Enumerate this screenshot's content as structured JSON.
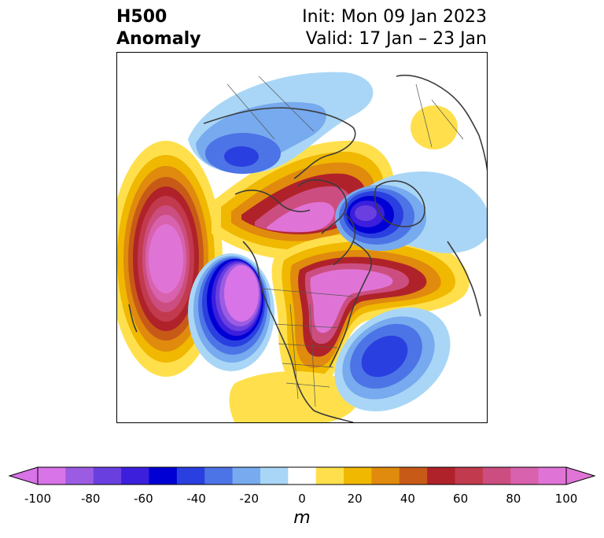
{
  "title": {
    "left_line1": "H500",
    "left_line2": "Anomaly",
    "init": "Init: Mon 09 Jan 2023",
    "valid": "Valid: 17 Jan – 23 Jan"
  },
  "colorbar": {
    "unit": "m",
    "ticks": [
      "-100",
      "-80",
      "-60",
      "-40",
      "-20",
      "0",
      "20",
      "40",
      "60",
      "80",
      "100"
    ],
    "levels": [
      -100,
      -90,
      -80,
      -70,
      -60,
      -50,
      -40,
      -30,
      -20,
      -10,
      10,
      20,
      30,
      40,
      50,
      60,
      70,
      80,
      90,
      100
    ],
    "colors": [
      "#d873e8",
      "#9b5ce3",
      "#6a3fdf",
      "#3b1fdc",
      "#0000d4",
      "#2a3fe0",
      "#4c74e6",
      "#77aaee",
      "#a9d6f6",
      "#ffffff",
      "#ffe04c",
      "#f0b800",
      "#e08a0e",
      "#c85a18",
      "#b0222a",
      "#c23a4e",
      "#cc4e80",
      "#d862ad",
      "#e074d6"
    ],
    "extend_low_color": "#d873e8",
    "extend_high_color": "#e074d6"
  },
  "anomalies": [
    {
      "label": "pacific-ridge-west",
      "value": 100
    },
    {
      "label": "western-na-trough",
      "value": -100
    },
    {
      "label": "arctic-ridge",
      "value": 100
    },
    {
      "label": "eastern-na-ridge",
      "value": 100
    },
    {
      "label": "greenland-trough",
      "value": -70
    },
    {
      "label": "siberia-trough",
      "value": -50
    },
    {
      "label": "atlantic-trough",
      "value": -50
    },
    {
      "label": "europe-ridge",
      "value": 20
    }
  ]
}
